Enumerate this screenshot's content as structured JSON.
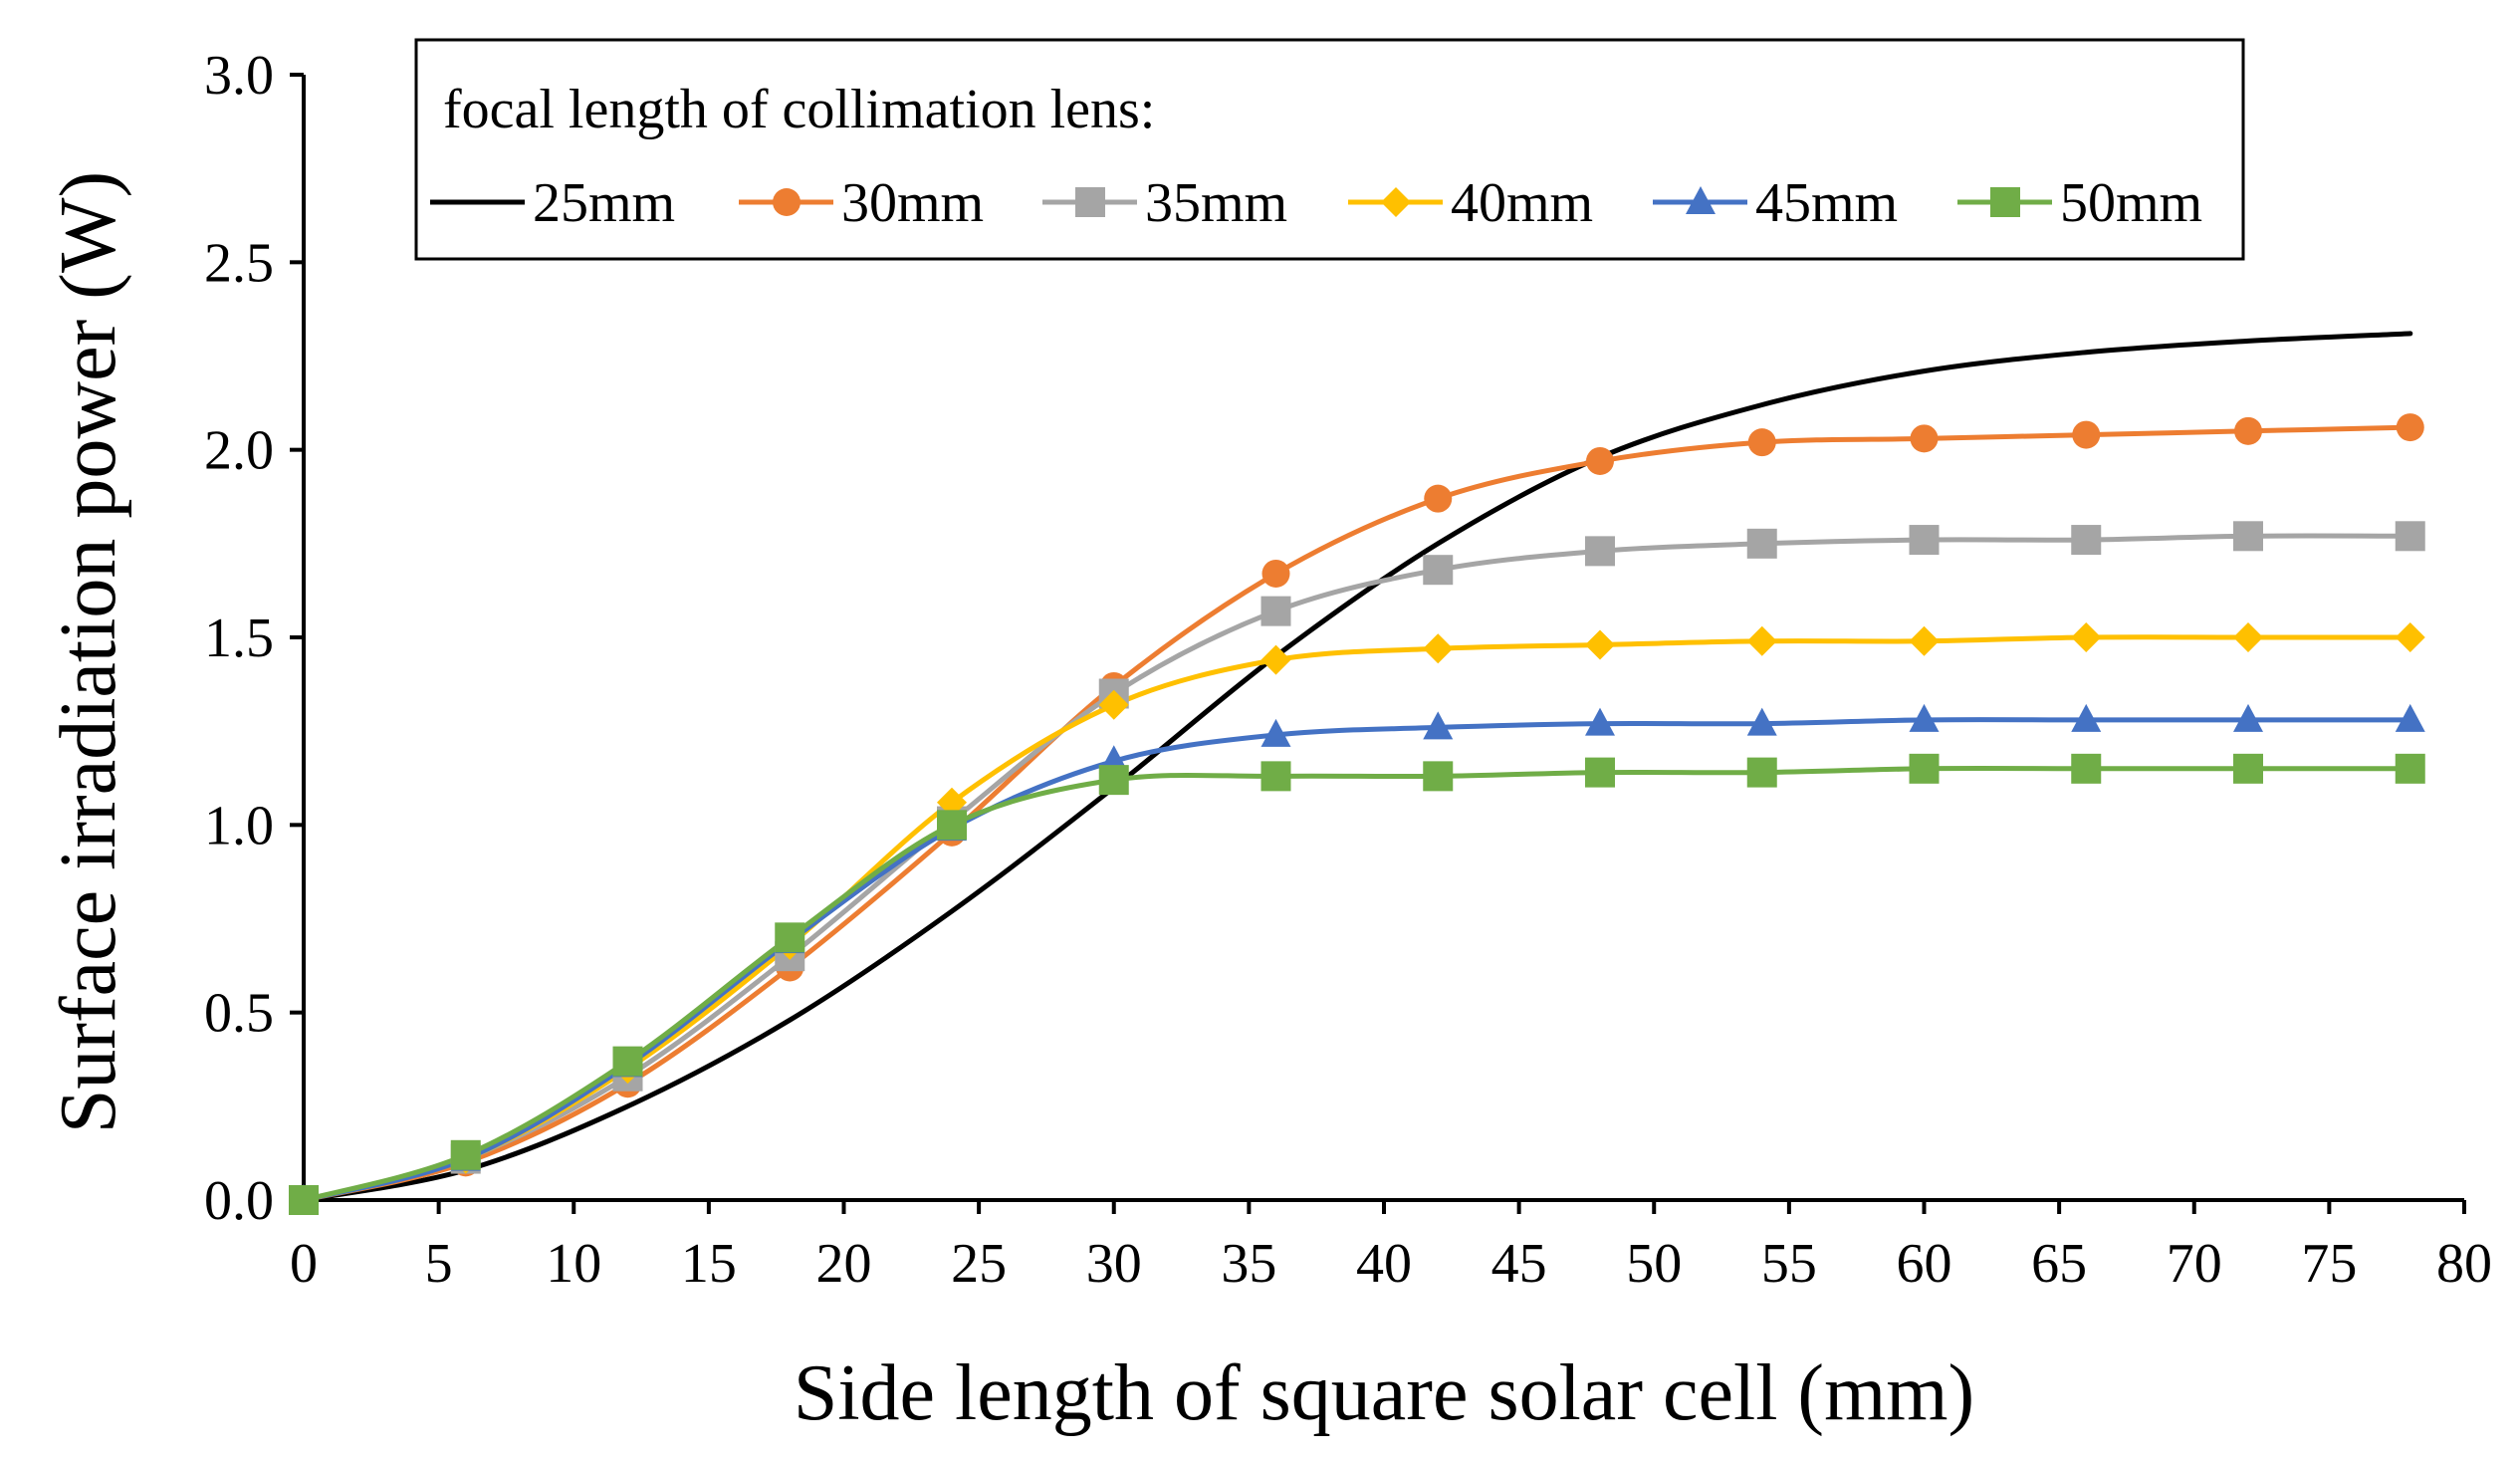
{
  "chart_data": {
    "type": "line",
    "title": "",
    "xlabel": "Side length of square solar cell (mm)",
    "ylabel": "Surface irradiation power (W)",
    "xlim": [
      0,
      80
    ],
    "ylim": [
      0,
      3.0
    ],
    "x_ticks": [
      0,
      5,
      10,
      15,
      20,
      25,
      30,
      35,
      40,
      45,
      50,
      55,
      60,
      65,
      70,
      75,
      80
    ],
    "y_ticks": [
      0.0,
      0.5,
      1.0,
      1.5,
      2.0,
      2.5,
      3.0
    ],
    "y_tick_labels": [
      "0.0",
      "0.5",
      "1.0",
      "1.5",
      "2.0",
      "2.5",
      "3.0"
    ],
    "grid": false,
    "legend_title": "focal length of collimation lens:",
    "legend_position": "top",
    "series": [
      {
        "name": "25mm",
        "color": "#000000",
        "marker": "none",
        "x": [
          0,
          6,
          12,
          18,
          24,
          30,
          36,
          42,
          48,
          54,
          60,
          66,
          72,
          78
        ],
        "y": [
          0.0,
          0.08,
          0.25,
          0.48,
          0.77,
          1.1,
          1.45,
          1.75,
          1.98,
          2.12,
          2.21,
          2.26,
          2.29,
          2.31
        ]
      },
      {
        "name": "30mm",
        "color": "#ED7D31",
        "marker": "circle",
        "x": [
          0,
          6,
          12,
          18,
          24,
          30,
          36,
          42,
          48,
          54,
          60,
          66,
          72,
          78
        ],
        "y": [
          0.0,
          0.1,
          0.31,
          0.62,
          0.98,
          1.37,
          1.67,
          1.87,
          1.97,
          2.02,
          2.03,
          2.04,
          2.05,
          2.06
        ]
      },
      {
        "name": "35mm",
        "color": "#A5A5A5",
        "marker": "square",
        "x": [
          0,
          6,
          12,
          18,
          24,
          30,
          36,
          42,
          48,
          54,
          60,
          66,
          72,
          78
        ],
        "y": [
          0.0,
          0.11,
          0.33,
          0.65,
          1.01,
          1.35,
          1.57,
          1.68,
          1.73,
          1.75,
          1.76,
          1.76,
          1.77,
          1.77
        ]
      },
      {
        "name": "40mm",
        "color": "#FFC000",
        "marker": "diamond",
        "x": [
          0,
          6,
          12,
          18,
          24,
          30,
          36,
          42,
          48,
          54,
          60,
          66,
          72,
          78
        ],
        "y": [
          0.0,
          0.11,
          0.35,
          0.68,
          1.06,
          1.32,
          1.44,
          1.47,
          1.48,
          1.49,
          1.49,
          1.5,
          1.5,
          1.5
        ]
      },
      {
        "name": "45mm",
        "color": "#4472C4",
        "marker": "triangle",
        "x": [
          0,
          6,
          12,
          18,
          24,
          30,
          36,
          42,
          48,
          54,
          60,
          66,
          72,
          78
        ],
        "y": [
          0.0,
          0.11,
          0.36,
          0.69,
          0.99,
          1.17,
          1.24,
          1.26,
          1.27,
          1.27,
          1.28,
          1.28,
          1.28,
          1.28
        ]
      },
      {
        "name": "50mm",
        "color": "#70AD47",
        "marker": "square",
        "x": [
          0,
          6,
          12,
          18,
          24,
          30,
          36,
          42,
          48,
          54,
          60,
          66,
          72,
          78
        ],
        "y": [
          0.0,
          0.12,
          0.37,
          0.7,
          1.0,
          1.12,
          1.13,
          1.13,
          1.14,
          1.14,
          1.15,
          1.15,
          1.15,
          1.15
        ]
      }
    ]
  }
}
